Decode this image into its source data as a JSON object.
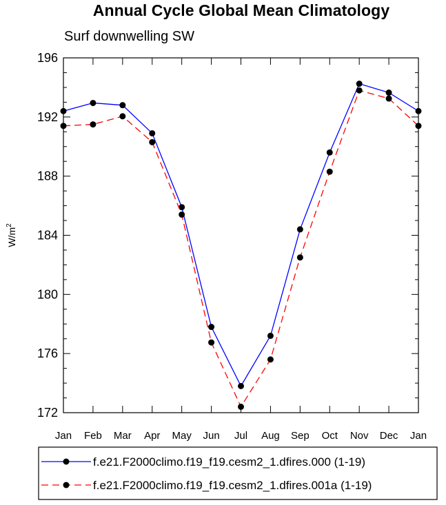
{
  "chart_data": {
    "type": "line",
    "title": "Annual Cycle Global Mean Climatology",
    "subtitle": "Surf downwelling SW",
    "ylabel": "W/m",
    "ylabel_sup": "2",
    "xlabel": "",
    "categories": [
      "Jan",
      "Feb",
      "Mar",
      "Apr",
      "May",
      "Jun",
      "Jul",
      "Aug",
      "Sep",
      "Oct",
      "Nov",
      "Dec",
      "Jan"
    ],
    "ylim": [
      172,
      196
    ],
    "yticks": [
      172,
      176,
      180,
      184,
      188,
      192,
      196
    ],
    "series": [
      {
        "name": "f.e21.F2000climo.f19_f19.cesm2_1.dfires.000 (1-19)",
        "color": "#0000ff",
        "dash": "solid",
        "values": [
          192.4,
          192.95,
          192.8,
          190.9,
          185.9,
          177.8,
          173.8,
          177.2,
          184.4,
          189.6,
          194.25,
          193.65,
          192.4
        ]
      },
      {
        "name": "f.e21.F2000climo.f19_f19.cesm2_1.dfires.001a (1-19)",
        "color": "#ff0000",
        "dash": "dashed",
        "values": [
          191.4,
          191.5,
          192.05,
          190.3,
          185.4,
          176.75,
          172.4,
          175.6,
          182.5,
          188.3,
          193.8,
          193.25,
          191.4
        ]
      }
    ],
    "legend_position": "bottom"
  }
}
